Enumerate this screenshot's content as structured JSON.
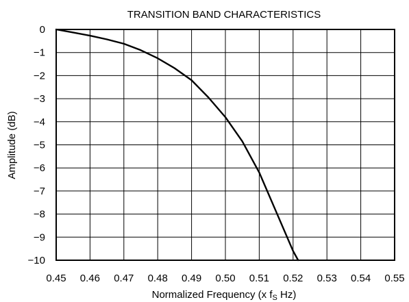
{
  "chart_data": {
    "type": "line",
    "title": "TRANSITION BAND CHARACTERISTICS",
    "xlabel": {
      "main": "Normalized Frequency (x f",
      "sub": "S",
      "tail": " Hz)"
    },
    "ylabel": "Amplitude (dB)",
    "xlim": [
      0.45,
      0.55
    ],
    "ylim": [
      -10,
      0
    ],
    "grid": true,
    "x_ticks": [
      0.45,
      0.46,
      0.47,
      0.48,
      0.49,
      0.5,
      0.51,
      0.52,
      0.53,
      0.54,
      0.55
    ],
    "x_tick_labels": [
      "0.45",
      "0.46",
      "0.47",
      "0.48",
      "0.49",
      "0.50",
      "0.51",
      "0.52",
      "0.53",
      "0.54",
      "0.55"
    ],
    "y_ticks": [
      0,
      -1,
      -2,
      -3,
      -4,
      -5,
      -6,
      -7,
      -8,
      -9,
      -10
    ],
    "y_tick_labels": [
      "0",
      "−1",
      "−2",
      "−3",
      "−4",
      "−5",
      "−6",
      "−7",
      "−8",
      "−9",
      "−10"
    ],
    "series": [
      {
        "x": [
          0.45,
          0.455,
          0.46,
          0.465,
          0.47,
          0.475,
          0.48,
          0.485,
          0.49,
          0.495,
          0.5,
          0.505,
          0.51,
          0.515,
          0.52,
          0.5215
        ],
        "y": [
          0,
          -0.13,
          -0.27,
          -0.43,
          -0.62,
          -0.9,
          -1.25,
          -1.68,
          -2.2,
          -2.95,
          -3.8,
          -4.85,
          -6.2,
          -7.9,
          -9.6,
          -10
        ],
        "color": "#000000"
      }
    ]
  }
}
